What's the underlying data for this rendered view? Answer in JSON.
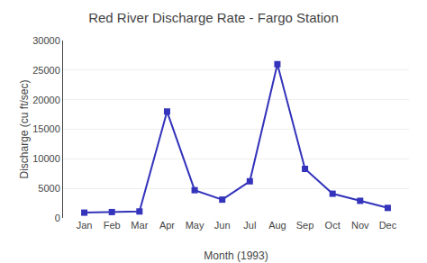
{
  "chart_data": {
    "type": "line",
    "title": "Red River Discharge Rate - Fargo Station",
    "xlabel": "Month (1993)",
    "ylabel": "Discharge (cu ft/sec)",
    "categories": [
      "Jan",
      "Feb",
      "Mar",
      "Apr",
      "May",
      "Jun",
      "Jul",
      "Aug",
      "Sep",
      "Oct",
      "Nov",
      "Dec"
    ],
    "values": [
      900,
      1000,
      1100,
      18000,
      4700,
      3100,
      6200,
      26000,
      8300,
      4100,
      2900,
      1700
    ],
    "color": "#3333bb",
    "marker": "square",
    "ylim": [
      0,
      30000
    ],
    "yticks": [
      0,
      5000,
      10000,
      15000,
      20000,
      25000,
      30000
    ],
    "grid": true
  }
}
